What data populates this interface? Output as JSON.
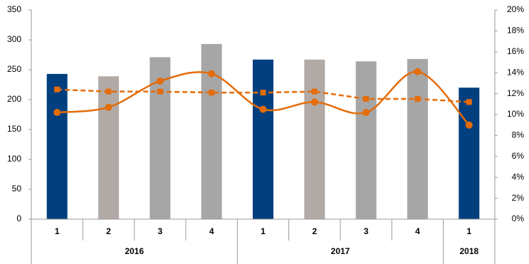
{
  "chart_data": {
    "type": "bar",
    "categories": [
      "1",
      "2",
      "3",
      "4",
      "1",
      "2",
      "3",
      "4",
      "1"
    ],
    "groups": [
      {
        "label": "2016",
        "count": 4
      },
      {
        "label": "2017",
        "count": 4
      },
      {
        "label": "2018",
        "count": 1
      }
    ],
    "values": [
      243,
      239,
      271,
      293,
      267,
      267,
      264,
      268,
      220
    ],
    "colors": [
      "#023f7e",
      "#b1aaa6",
      "#a6a6a6",
      "#a6a6a6",
      "#023f7e",
      "#b1aaa6",
      "#a6a6a6",
      "#a6a6a6",
      "#023f7e"
    ],
    "ylim": [
      0,
      350
    ],
    "yticks": [
      0,
      50,
      100,
      150,
      200,
      250,
      300,
      350
    ],
    "y2lim": [
      0,
      20
    ],
    "y2ticks": [
      {
        "value": 0,
        "label": "0%"
      },
      {
        "value": 2,
        "label": "2%"
      },
      {
        "value": 4,
        "label": "4%"
      },
      {
        "value": 6,
        "label": "6%"
      },
      {
        "value": 8,
        "label": "8%"
      },
      {
        "value": 10,
        "label": "10%"
      },
      {
        "value": 12,
        "label": "12%"
      },
      {
        "value": 14,
        "label": "14%"
      },
      {
        "value": 16,
        "label": "16%"
      },
      {
        "value": 18,
        "label": "18%"
      },
      {
        "value": 20,
        "label": "20%"
      }
    ],
    "series": [
      {
        "type": "line",
        "axis": "y2",
        "color": "#e46c0a",
        "smooth": true,
        "dashed": false,
        "marker": "circle",
        "values": [
          10.2,
          10.7,
          13.2,
          13.9,
          10.5,
          11.2,
          10.2,
          14.1,
          9.0
        ]
      },
      {
        "type": "line",
        "axis": "y2",
        "color": "#e46c0a",
        "smooth": false,
        "dashed": true,
        "marker": "square",
        "values": [
          12.4,
          12.2,
          12.2,
          12.1,
          12.1,
          12.2,
          11.5,
          11.5,
          11.2
        ]
      }
    ]
  }
}
